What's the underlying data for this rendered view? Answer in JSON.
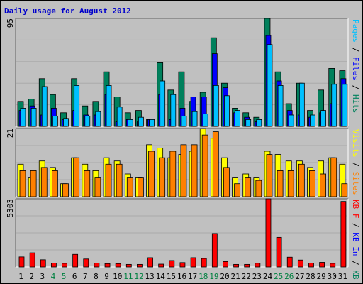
{
  "chart_data": [
    {
      "type": "bar",
      "panel": "hits_files_pages",
      "title": "Daily usage for August 2012",
      "ymax_label": "95",
      "ylim": [
        0,
        95
      ],
      "categories": [
        "1",
        "2",
        "3",
        "4",
        "5",
        "6",
        "7",
        "8",
        "9",
        "10",
        "11",
        "12",
        "13",
        "14",
        "15",
        "16",
        "17",
        "18",
        "19",
        "20",
        "21",
        "22",
        "23",
        "24",
        "25",
        "26",
        "27",
        "28",
        "29",
        "30",
        "31"
      ],
      "weekend_days": [
        "4",
        "5",
        "11",
        "12",
        "18",
        "19",
        "25",
        "26"
      ],
      "legend": [
        "Pages",
        "Files",
        "Hits"
      ],
      "series": [
        {
          "name": "Hits",
          "color": "#00805c",
          "values": [
            22,
            24,
            42,
            28,
            12,
            42,
            18,
            22,
            48,
            26,
            12,
            14,
            6,
            56,
            32,
            48,
            22,
            30,
            78,
            38,
            16,
            12,
            8,
            95,
            48,
            20,
            38,
            14,
            32,
            51,
            49
          ]
        },
        {
          "name": "Files",
          "color": "#0000ff",
          "values": [
            14,
            18,
            10,
            16,
            6,
            14,
            10,
            10,
            28,
            4,
            6,
            4,
            6,
            28,
            6,
            16,
            26,
            26,
            64,
            34,
            12,
            8,
            4,
            80,
            40,
            14,
            10,
            8,
            12,
            20,
            42
          ]
        },
        {
          "name": "Pages",
          "color": "#00c0ff",
          "values": [
            16,
            16,
            35,
            9,
            7,
            36,
            9,
            13,
            36,
            17,
            6,
            8,
            6,
            40,
            28,
            9,
            13,
            11,
            36,
            27,
            14,
            6,
            6,
            72,
            36,
            10,
            38,
            10,
            14,
            37,
            37
          ]
        }
      ]
    },
    {
      "type": "bar",
      "panel": "sites_visits",
      "ymax_label": "21",
      "ylim": [
        0,
        21
      ],
      "legend": [
        "Visits",
        "Sites"
      ],
      "series": [
        {
          "name": "Visits",
          "color": "#ffff00",
          "values": [
            10,
            6,
            11,
            9,
            4,
            12,
            10,
            8,
            12,
            11,
            7,
            6,
            16,
            15,
            12,
            13,
            14,
            21,
            18,
            12,
            6,
            7,
            6,
            14,
            13,
            11,
            11,
            9,
            11,
            12,
            10
          ]
        },
        {
          "name": "Sites",
          "color": "#ff8000",
          "values": [
            8,
            8,
            9,
            8,
            4,
            12,
            8,
            6,
            10,
            10,
            6,
            6,
            14,
            12,
            14,
            16,
            16,
            19,
            20,
            9,
            4,
            6,
            5,
            13,
            8,
            8,
            10,
            8,
            7,
            12,
            4
          ]
        }
      ]
    },
    {
      "type": "bar",
      "panel": "kbytes",
      "ymax_label": "5303",
      "ylim": [
        0,
        5303
      ],
      "legend": [
        "KB F",
        "KB In",
        "KB Out"
      ],
      "series": [
        {
          "name": "KB F",
          "color": "#ff0000",
          "values": [
            780,
            1100,
            560,
            300,
            280,
            980,
            620,
            300,
            260,
            260,
            200,
            200,
            720,
            220,
            500,
            340,
            720,
            660,
            2600,
            420,
            200,
            200,
            290,
            5303,
            2300,
            760,
            540,
            300,
            360,
            280,
            5100
          ]
        }
      ]
    }
  ]
}
